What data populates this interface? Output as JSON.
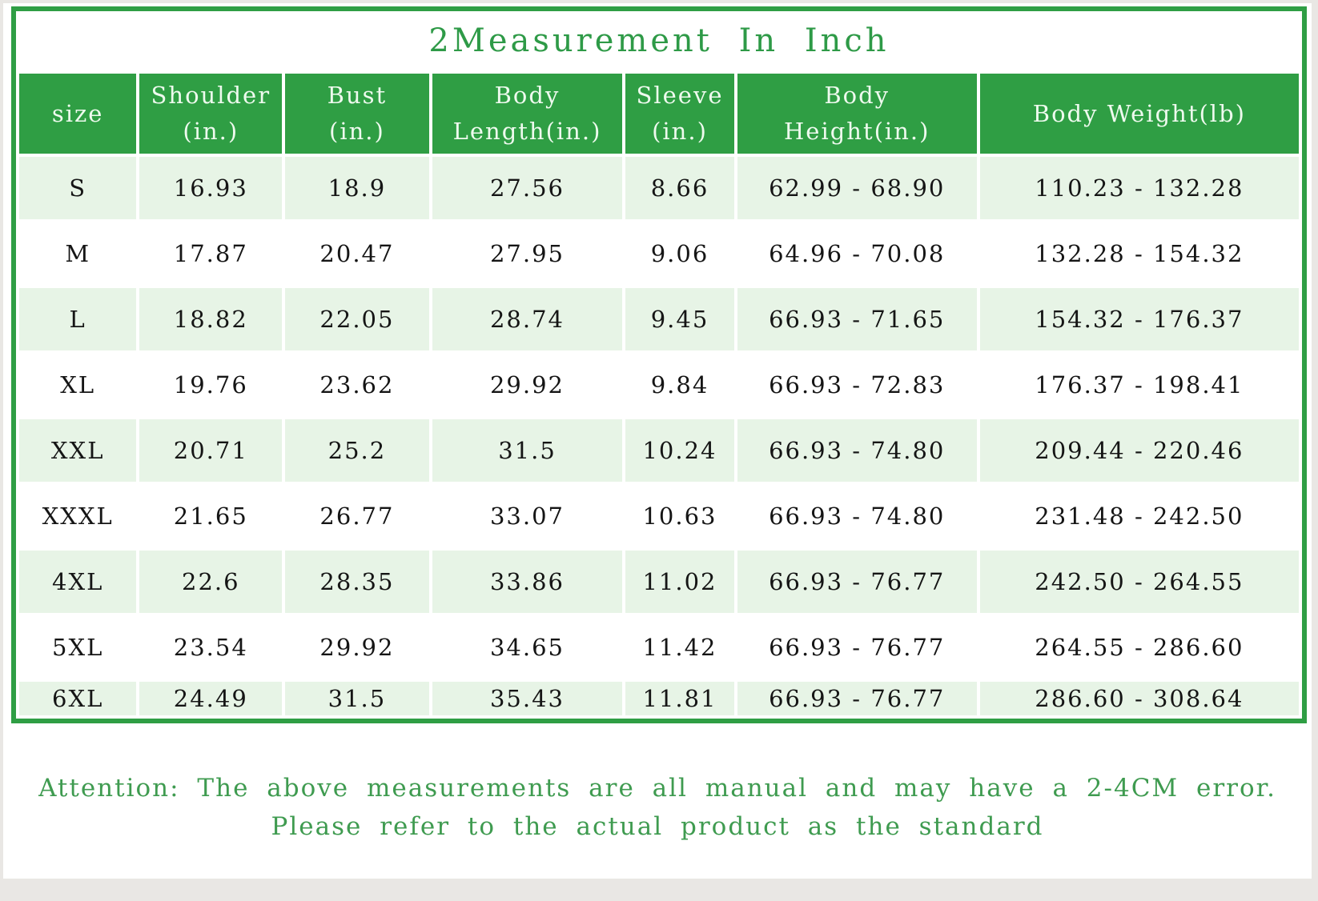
{
  "title": "2Measurement In Inch",
  "table": {
    "columns": [
      "size",
      "Shoulder\n(in.)",
      "Bust\n(in.)",
      "Body\nLength(in.)",
      "Sleeve\n(in.)",
      "Body\nHeight(in.)",
      "Body Weight(lb)"
    ],
    "col_widths": [
      "9.3%",
      "11.3%",
      "11.4%",
      "15.1%",
      "8.6%",
      "19.0%",
      "25.3%"
    ],
    "rows": [
      [
        "S",
        "16.93",
        "18.9",
        "27.56",
        "8.66",
        "62.99 - 68.90",
        "110.23 - 132.28"
      ],
      [
        "M",
        "17.87",
        "20.47",
        "27.95",
        "9.06",
        "64.96 - 70.08",
        "132.28 - 154.32"
      ],
      [
        "L",
        "18.82",
        "22.05",
        "28.74",
        "9.45",
        "66.93 - 71.65",
        "154.32 - 176.37"
      ],
      [
        "XL",
        "19.76",
        "23.62",
        "29.92",
        "9.84",
        "66.93 - 72.83",
        "176.37 - 198.41"
      ],
      [
        "XXL",
        "20.71",
        "25.2",
        "31.5",
        "10.24",
        "66.93 - 74.80",
        "209.44 - 220.46"
      ],
      [
        "XXXL",
        "21.65",
        "26.77",
        "33.07",
        "10.63",
        "66.93 - 74.80",
        "231.48 - 242.50"
      ],
      [
        "4XL",
        "22.6",
        "28.35",
        "33.86",
        "11.02",
        "66.93 - 76.77",
        "242.50 - 264.55"
      ],
      [
        "5XL",
        "23.54",
        "29.92",
        "34.65",
        "11.42",
        "66.93 - 76.77",
        "264.55 - 286.60"
      ],
      [
        "6XL",
        "24.49",
        "31.5",
        "35.43",
        "11.81",
        "66.93 - 76.77",
        "286.60 - 308.64"
      ]
    ]
  },
  "footer": {
    "line1": "Attention: The above measurements are all manual and may have a 2-4CM error.",
    "line2": "Please refer to the actual product as the standard"
  },
  "colors": {
    "header_green": "#2f9e44",
    "row_light_green": "#e7f4e6",
    "title_text_green": "#2e9a47",
    "footer_text_green": "#3f9b50"
  }
}
